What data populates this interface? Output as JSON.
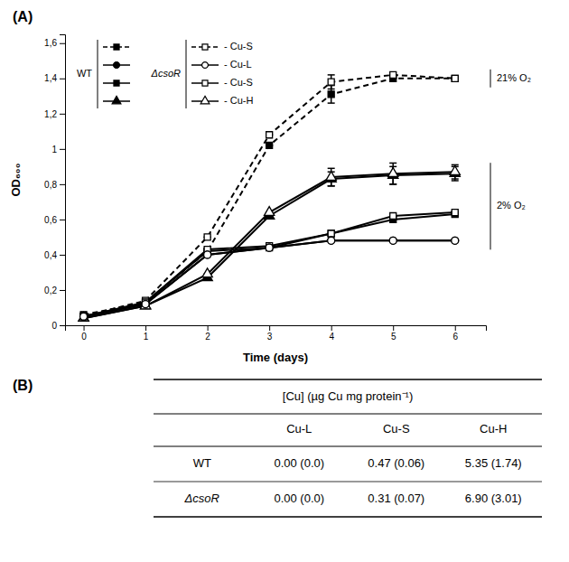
{
  "chart_data": [
    {
      "type": "line",
      "title": "(A)",
      "xlabel": "Time (days)",
      "ylabel": "OD₆₀₀",
      "x": [
        0,
        1,
        2,
        3,
        4,
        5,
        6
      ],
      "xlim": [
        -0.3,
        6.5
      ],
      "xticks": [
        0,
        1,
        2,
        3,
        4,
        5,
        6
      ],
      "ylim": [
        0,
        1.65
      ],
      "yticks": [
        0,
        {
          "value": 0.2,
          "label": "0,2"
        },
        {
          "value": 0.4,
          "label": "0,4"
        },
        {
          "value": 0.6,
          "label": "0,6"
        },
        {
          "value": 0.8,
          "label": "0,8"
        },
        1,
        {
          "value": 1.2,
          "label": "1,2"
        },
        {
          "value": 1.4,
          "label": "1,4"
        },
        {
          "value": 1.6,
          "label": "1,6"
        }
      ],
      "grid": false,
      "series": [
        {
          "color": "black",
          "marker": "square",
          "line_style": "dashed",
          "values": [
            0.06,
            0.13,
            0.42,
            1.02,
            1.31,
            1.4,
            1.4
          ],
          "errors": [
            0.0,
            0.0,
            0.0,
            0.0,
            0.05,
            0.0,
            0.0
          ]
        },
        {
          "color": "black",
          "marker": "square-open",
          "line_style": "dashed",
          "values": [
            0.05,
            0.14,
            0.5,
            1.08,
            1.38,
            1.42,
            1.4
          ],
          "errors": [
            0.0,
            0.0,
            0.0,
            0.0,
            0.04,
            0.0,
            0.0
          ]
        },
        {
          "color": "black",
          "marker": "triangle",
          "line_style": "solid",
          "values": [
            0.04,
            0.11,
            0.27,
            0.62,
            0.83,
            0.85,
            0.86
          ],
          "errors": [
            0.0,
            0.0,
            0.0,
            0.0,
            0.04,
            0.05,
            0.04
          ]
        },
        {
          "color": "black",
          "marker": "triangle-open",
          "line_style": "solid",
          "values": [
            0.04,
            0.11,
            0.29,
            0.64,
            0.84,
            0.86,
            0.87
          ],
          "errors": [
            0.0,
            0.0,
            0.0,
            0.0,
            0.05,
            0.06,
            0.04
          ]
        },
        {
          "color": "black",
          "marker": "square",
          "line_style": "solid",
          "values": [
            0.05,
            0.13,
            0.42,
            0.44,
            0.52,
            0.6,
            0.63
          ],
          "errors": [
            0.0,
            0.0,
            0.0,
            0.0,
            0.0,
            0.0,
            0.0
          ]
        },
        {
          "color": "black",
          "marker": "square-open",
          "line_style": "solid",
          "values": [
            0.05,
            0.13,
            0.43,
            0.45,
            0.52,
            0.62,
            0.64
          ],
          "errors": [
            0.0,
            0.0,
            0.0,
            0.0,
            0.0,
            0.0,
            0.0
          ]
        },
        {
          "color": "black",
          "marker": "circle",
          "line_style": "solid",
          "values": [
            0.05,
            0.12,
            0.4,
            0.44,
            0.48,
            0.48,
            0.48
          ],
          "errors": [
            0.0,
            0.0,
            0.0,
            0.0,
            0.0,
            0.0,
            0.0
          ]
        },
        {
          "color": "black",
          "marker": "circle-open",
          "line_style": "solid",
          "values": [
            0.05,
            0.12,
            0.4,
            0.44,
            0.48,
            0.48,
            0.48
          ],
          "errors": [
            0.0,
            0.0,
            0.0,
            0.0,
            0.0,
            0.0,
            0.0
          ]
        }
      ],
      "annotations": [
        "WT",
        "ΔcsoR",
        "- Cu-S",
        "- Cu-L",
        "- Cu-S",
        "- Cu-H",
        "21% O₂",
        "2% O₂"
      ]
    },
    {
      "type": "table",
      "title": "(B)",
      "header": "[Cu] (µg Cu mg protein⁻¹)",
      "columns": [
        "Cu-L",
        "Cu-S",
        "Cu-H"
      ],
      "rows": [
        "WT",
        "ΔcsoR"
      ],
      "cells": [
        [
          "0.00 (0.0)",
          "0.47 (0.06)",
          "5.35 (1.74)"
        ],
        [
          "0.00 (0.0)",
          "0.31 (0.07)",
          "6.90 (3.01)"
        ]
      ]
    }
  ]
}
